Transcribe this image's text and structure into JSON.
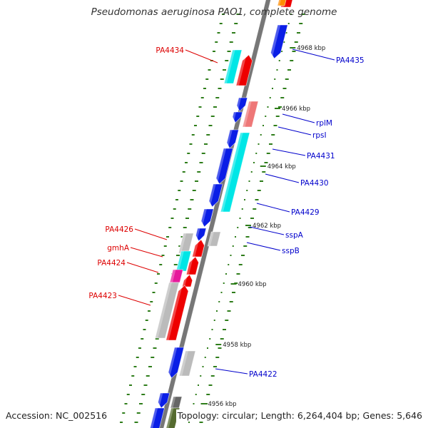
{
  "title": "Pseudomonas aeruginosa PAO1, complete genome",
  "footer": {
    "accession": "Accession: NC_002516",
    "summary": "Topology: circular; Length: 6,264,404 bp; Genes: 5,646"
  },
  "colors": {
    "backbone": "#777777",
    "tick": "#2e7d1a",
    "forward_label": "#0000cc",
    "reverse_label": "#dd0000",
    "cds_blue": "#0a1ee6",
    "cds_red": "#ee0000",
    "cds_cyan": "#00e6e6",
    "cds_gray": "#bbbbbb",
    "cds_pink": "#ee7777",
    "cds_magenta": "#e6199b"
  },
  "ticks": [
    {
      "label": "4968 kbp"
    },
    {
      "label": "4966 kbp"
    },
    {
      "label": "4964 kbp"
    },
    {
      "label": "4962 kbp"
    },
    {
      "label": "4960 kbp"
    },
    {
      "label": "4958 kbp"
    },
    {
      "label": "4956 kbp"
    }
  ],
  "forward_labels": [
    {
      "text": "PA4435"
    },
    {
      "text": "rplM"
    },
    {
      "text": "rpsI"
    },
    {
      "text": "PA4431"
    },
    {
      "text": "PA4430"
    },
    {
      "text": "PA4429"
    },
    {
      "text": "sspA"
    },
    {
      "text": "sspB"
    },
    {
      "text": "PA4422"
    }
  ],
  "reverse_labels": [
    {
      "text": "PA4434"
    },
    {
      "text": "PA4426"
    },
    {
      "text": "gmhA"
    },
    {
      "text": "PA4424"
    },
    {
      "text": "PA4423"
    }
  ]
}
